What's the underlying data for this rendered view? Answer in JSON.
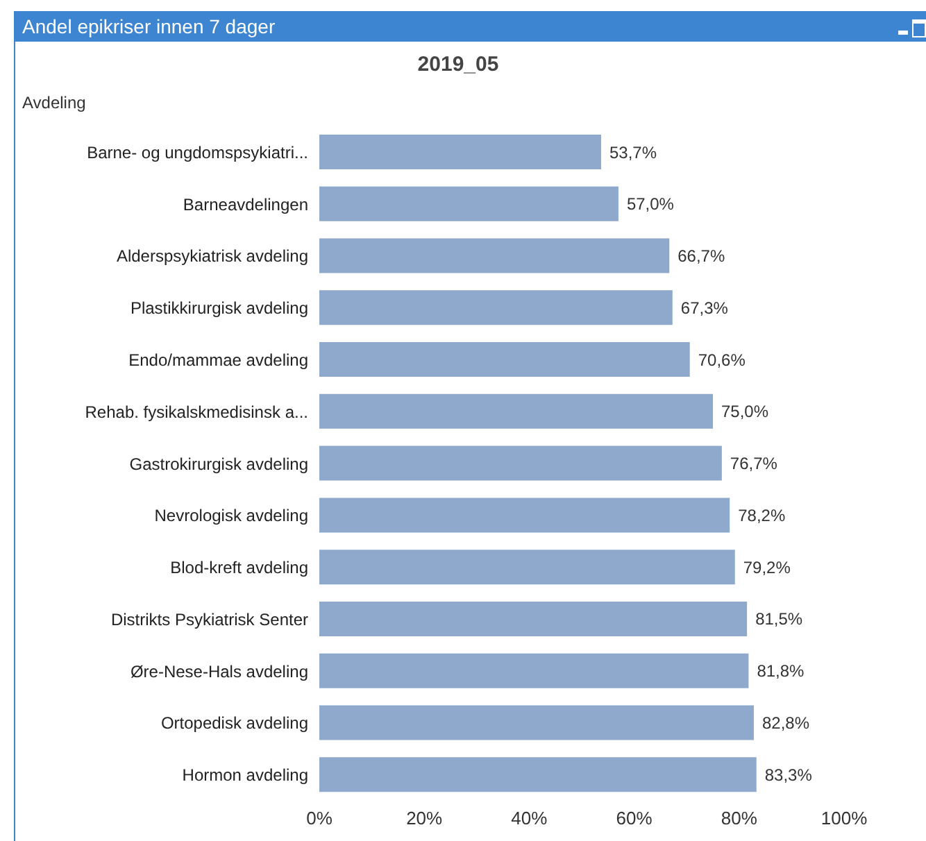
{
  "chart_data": {
    "type": "bar",
    "orientation": "horizontal",
    "title": "Andel epikriser innen 7 dager",
    "subtitle": "2019_05",
    "ylabel": "Avdeling",
    "categories": [
      "Barne- og ungdomspsykiatri...",
      "Barneavdelingen",
      "Alderspsykiatrisk avdeling",
      "Plastikkirurgisk avdeling",
      "Endo/mammae avdeling",
      "Rehab. fysikalskmedisinsk a...",
      "Gastrokirurgisk avdeling",
      "Nevrologisk avdeling",
      "Blod-kreft avdeling",
      "Distrikts Psykiatrisk Senter",
      "Øre-Nese-Hals avdeling",
      "Ortopedisk avdeling",
      "Hormon avdeling"
    ],
    "values": [
      53.7,
      57.0,
      66.7,
      67.3,
      70.6,
      75.0,
      76.7,
      78.2,
      79.2,
      81.5,
      81.8,
      82.8,
      83.3
    ],
    "value_labels": [
      "53,7%",
      "57,0%",
      "66,7%",
      "67,3%",
      "70,6%",
      "75,0%",
      "76,7%",
      "78,2%",
      "79,2%",
      "81,5%",
      "81,8%",
      "82,8%",
      "83,3%"
    ],
    "color": "#8ea9cc",
    "xlim": [
      0,
      100
    ],
    "xticks": [
      {
        "value": 0,
        "label": "0%"
      },
      {
        "value": 20,
        "label": "20%"
      },
      {
        "value": 40,
        "label": "40%"
      },
      {
        "value": 60,
        "label": "60%"
      },
      {
        "value": 80,
        "label": "80%"
      },
      {
        "value": 100,
        "label": "100%"
      }
    ],
    "grid": false,
    "legend": false
  }
}
